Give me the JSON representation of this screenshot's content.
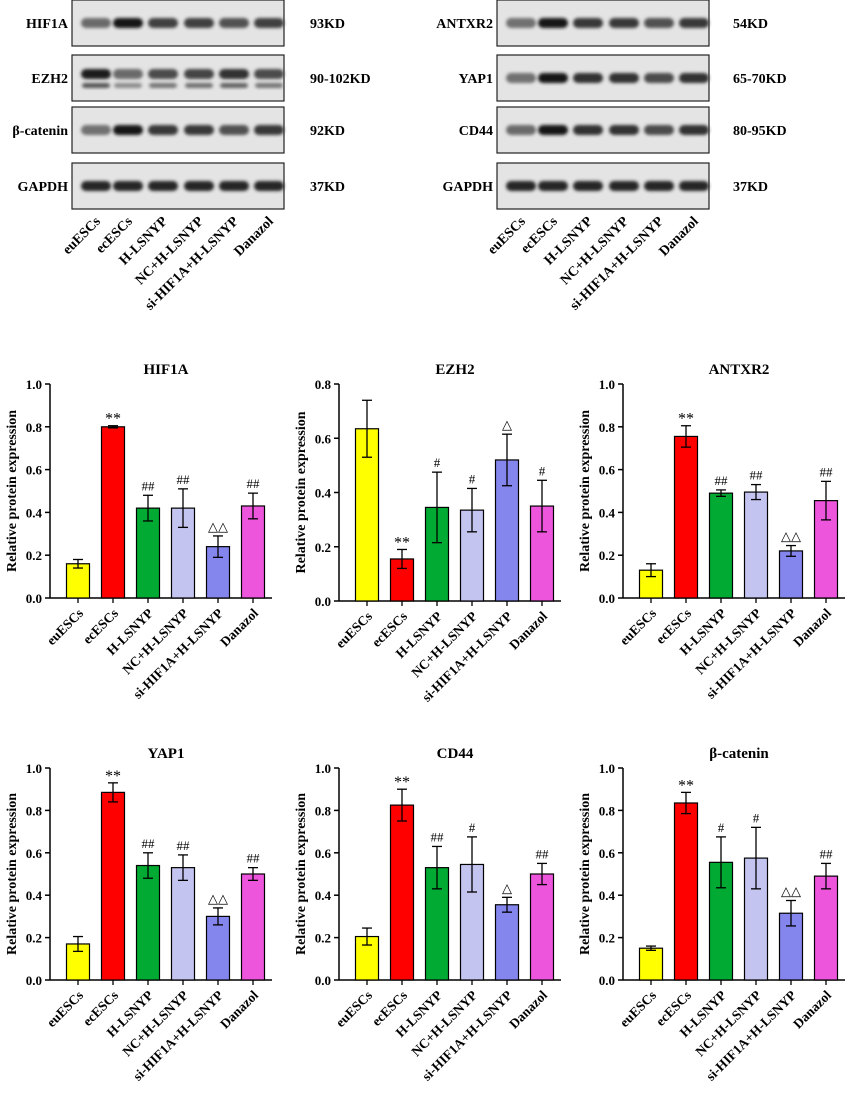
{
  "blots": {
    "lanes": [
      "euESCs",
      "ecESCs",
      "H-LSNYP",
      "NC+H-LSNYP",
      "si-HIF1A+H-LSNYP",
      "Danazol"
    ],
    "left": [
      {
        "protein": "HIF1A",
        "size": "93KD",
        "intensity": [
          0.35,
          1.0,
          0.7,
          0.7,
          0.55,
          0.7
        ],
        "double": false
      },
      {
        "protein": "EZH2",
        "size": "90-102KD",
        "intensity": [
          0.95,
          0.35,
          0.6,
          0.65,
          0.8,
          0.6
        ],
        "double": true
      },
      {
        "protein": "β-catenin",
        "size": "92KD",
        "intensity": [
          0.3,
          1.0,
          0.75,
          0.75,
          0.55,
          0.75
        ],
        "double": false
      },
      {
        "protein": "GAPDH",
        "size": "37KD",
        "intensity": [
          0.9,
          0.9,
          0.9,
          0.9,
          0.9,
          0.9
        ],
        "double": false
      }
    ],
    "right": [
      {
        "protein": "ANTXR2",
        "size": "54KD",
        "intensity": [
          0.3,
          1.0,
          0.75,
          0.75,
          0.55,
          0.75
        ],
        "double": false
      },
      {
        "protein": "YAP1",
        "size": "65-70KD",
        "intensity": [
          0.3,
          1.0,
          0.8,
          0.8,
          0.6,
          0.8
        ],
        "double": false
      },
      {
        "protein": "CD44",
        "size": "80-95KD",
        "intensity": [
          0.35,
          1.0,
          0.8,
          0.8,
          0.6,
          0.8
        ],
        "double": false
      },
      {
        "protein": "GAPDH",
        "size": "37KD",
        "intensity": [
          0.9,
          0.9,
          0.9,
          0.9,
          0.9,
          0.9
        ],
        "double": false
      }
    ]
  },
  "chart_data": [
    {
      "type": "bar",
      "title": "HIF1A",
      "categories": [
        "euESCs",
        "ecESCs",
        "H-LSNYP",
        "NC+H-LSNYP",
        "si-HIF1A+H-LSNYP",
        "Danazol"
      ],
      "values": [
        0.16,
        0.8,
        0.42,
        0.42,
        0.24,
        0.43
      ],
      "errors": [
        0.02,
        0.005,
        0.06,
        0.09,
        0.05,
        0.06
      ],
      "annotations": [
        "",
        "**",
        "##",
        "##",
        "△△",
        "##"
      ],
      "ylabel": "Relative protein expression",
      "ylim": [
        0,
        1.0
      ],
      "yticks": [
        "0.0",
        "0.2",
        "0.4",
        "0.6",
        "0.8",
        "1.0"
      ],
      "colors": [
        "#ffff00",
        "#ff0000",
        "#00aa33",
        "#c4c4f0",
        "#8585ee",
        "#ee55dd"
      ]
    },
    {
      "type": "bar",
      "title": "EZH2",
      "categories": [
        "euESCs",
        "ecESCs",
        "H-LSNYP",
        "NC+H-LSNYP",
        "si-HIF1A+H-LSNYP",
        "Danazol"
      ],
      "values": [
        0.635,
        0.155,
        0.345,
        0.335,
        0.52,
        0.35
      ],
      "errors": [
        0.105,
        0.035,
        0.13,
        0.08,
        0.095,
        0.095
      ],
      "annotations": [
        "",
        "**",
        "#",
        "#",
        "△",
        "#"
      ],
      "ylabel": "Relative protein expression",
      "ylim": [
        0,
        0.8
      ],
      "yticks": [
        "0.0",
        "0.2",
        "0.4",
        "0.6",
        "0.8"
      ],
      "colors": [
        "#ffff00",
        "#ff0000",
        "#00aa33",
        "#c4c4f0",
        "#8585ee",
        "#ee55dd"
      ]
    },
    {
      "type": "bar",
      "title": "ANTXR2",
      "categories": [
        "euESCs",
        "ecESCs",
        "H-LSNYP",
        "NC+H-LSNYP",
        "si-HIF1A+H-LSNYP",
        "Danazol"
      ],
      "values": [
        0.13,
        0.755,
        0.49,
        0.495,
        0.22,
        0.455
      ],
      "errors": [
        0.03,
        0.05,
        0.015,
        0.035,
        0.025,
        0.09
      ],
      "annotations": [
        "",
        "**",
        "##",
        "##",
        "△△",
        "##"
      ],
      "ylabel": "Relative protein expression",
      "ylim": [
        0,
        1.0
      ],
      "yticks": [
        "0.0",
        "0.2",
        "0.4",
        "0.6",
        "0.8",
        "1.0"
      ],
      "colors": [
        "#ffff00",
        "#ff0000",
        "#00aa33",
        "#c4c4f0",
        "#8585ee",
        "#ee55dd"
      ]
    },
    {
      "type": "bar",
      "title": "YAP1",
      "categories": [
        "euESCs",
        "ecESCs",
        "H-LSNYP",
        "NC+H-LSNYP",
        "si-HIF1A+H-LSNYP",
        "Danazol"
      ],
      "values": [
        0.17,
        0.885,
        0.54,
        0.53,
        0.3,
        0.5
      ],
      "errors": [
        0.035,
        0.045,
        0.06,
        0.06,
        0.04,
        0.03
      ],
      "annotations": [
        "",
        "**",
        "##",
        "##",
        "△△",
        "##"
      ],
      "ylabel": "Relative protein expression",
      "ylim": [
        0,
        1.0
      ],
      "yticks": [
        "0.0",
        "0.2",
        "0.4",
        "0.6",
        "0.8",
        "1.0"
      ],
      "colors": [
        "#ffff00",
        "#ff0000",
        "#00aa33",
        "#c4c4f0",
        "#8585ee",
        "#ee55dd"
      ]
    },
    {
      "type": "bar",
      "title": "CD44",
      "categories": [
        "euESCs",
        "ecESCs",
        "H-LSNYP",
        "NC+H-LSNYP",
        "si-HIF1A+H-LSNYP",
        "Danazol"
      ],
      "values": [
        0.205,
        0.825,
        0.53,
        0.545,
        0.355,
        0.5
      ],
      "errors": [
        0.04,
        0.075,
        0.1,
        0.13,
        0.035,
        0.05
      ],
      "annotations": [
        "",
        "**",
        "##",
        "#",
        "△",
        "##"
      ],
      "ylabel": "Relative protein expression",
      "ylim": [
        0,
        1.0
      ],
      "yticks": [
        "0.0",
        "0.2",
        "0.4",
        "0.6",
        "0.8",
        "1.0"
      ],
      "colors": [
        "#ffff00",
        "#ff0000",
        "#00aa33",
        "#c4c4f0",
        "#8585ee",
        "#ee55dd"
      ]
    },
    {
      "type": "bar",
      "title": "β-catenin",
      "categories": [
        "euESCs",
        "ecESCs",
        "H-LSNYP",
        "NC+H-LSNYP",
        "si-HIF1A+H-LSNYP",
        "Danazol"
      ],
      "values": [
        0.15,
        0.835,
        0.555,
        0.575,
        0.315,
        0.49
      ],
      "errors": [
        0.01,
        0.05,
        0.12,
        0.145,
        0.06,
        0.06
      ],
      "annotations": [
        "",
        "**",
        "#",
        "#",
        "△△",
        "##"
      ],
      "ylabel": "Relative protein expression",
      "ylim": [
        0,
        1.0
      ],
      "yticks": [
        "0.0",
        "0.2",
        "0.4",
        "0.6",
        "0.8",
        "1.0"
      ],
      "colors": [
        "#ffff00",
        "#ff0000",
        "#00aa33",
        "#c4c4f0",
        "#8585ee",
        "#ee55dd"
      ]
    }
  ]
}
